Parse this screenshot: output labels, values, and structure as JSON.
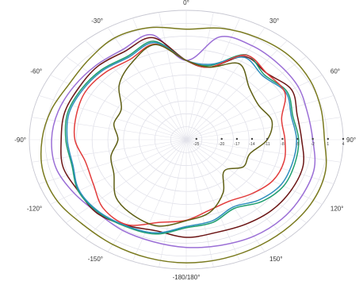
{
  "chart_data": {
    "type": "line",
    "subtype": "polar",
    "angle_ticks": [
      "0°",
      "30°",
      "60°",
      "90°",
      "120°",
      "150°",
      "-180/180°",
      "-150°",
      "-120°",
      "-90°",
      "-60°",
      "-30°"
    ],
    "radial_ticks": [
      "-25",
      "-20",
      "-17",
      "-14",
      "-11",
      "-8",
      "-5",
      "-2",
      "1",
      "4"
    ],
    "rlim": [
      -27,
      4
    ],
    "grid": true,
    "legend": "none",
    "series": [
      {
        "color": "#7a7a1e",
        "r": [
          -0.5,
          0.6,
          1.2,
          1.6,
          1.3,
          0.6,
          0.3,
          1.5,
          2.0,
          2.1,
          2.2,
          2.4,
          2.5,
          2.3,
          2.0,
          1.8,
          2.4,
          2.3,
          1.5,
          0.6,
          -0.3,
          0.2,
          1.2,
          0.8
        ]
      },
      {
        "color": "#9b6fd6",
        "r": [
          -8.0,
          -1.5,
          -1.0,
          -1.3,
          -1.5,
          -2.2,
          -2.0,
          -0.8,
          -0.5,
          -0.2,
          -0.3,
          -0.8,
          -1.2,
          -1.7,
          -1.9,
          -2.2,
          -1.4,
          -0.4,
          -0.4,
          -0.8,
          -1.4,
          -1.8,
          -2.0,
          -1.0
        ]
      },
      {
        "color": "#6b1414",
        "r": [
          -8.0,
          -9.0,
          -4.0,
          -4.5,
          -3.0,
          -4.3,
          -4.2,
          -3.1,
          -3.0,
          -3.1,
          -3.6,
          -4.0,
          -3.6,
          -4.4,
          -3.3,
          -2.1,
          -2.4,
          -1.8,
          -2.3,
          -2.1,
          -2.4,
          -2.2,
          -2.6,
          -1.7
        ]
      },
      {
        "color": "#1f9e6e",
        "r": [
          -8.0,
          -8.6,
          -3.5,
          -5.1,
          -4.0,
          -5.2,
          -4.8,
          -4.8,
          -4.8,
          -6.0,
          -8.0,
          -6.5,
          -5.9,
          -3.6,
          -3.0,
          -2.4,
          -2.4,
          -3.6,
          -3.2,
          -2.7,
          -3.0,
          -3.3,
          -3.9,
          -2.6
        ]
      },
      {
        "color": "#2f8fbe",
        "r": [
          -8.0,
          -8.3,
          -4.2,
          -5.5,
          -4.3,
          -5.5,
          -5.2,
          -5.3,
          -5.4,
          -6.6,
          -8.4,
          -6.9,
          -6.2,
          -3.9,
          -3.2,
          -2.6,
          -2.6,
          -3.8,
          -3.5,
          -3.0,
          -3.3,
          -3.6,
          -4.2,
          -2.9
        ]
      },
      {
        "color": "#e23c3c",
        "r": [
          -8.0,
          -9.0,
          -3.6,
          -4.5,
          -4.5,
          -7.5,
          -7.5,
          -7.0,
          -7.3,
          -8.7,
          -10.0,
          -9.5,
          -7.7,
          -6.5,
          -3.5,
          -3.8,
          -5.8,
          -6.4,
          -5.0,
          -4.5,
          -4.0,
          -4.3,
          -4.8,
          -3.3
        ]
      },
      {
        "color": "#5f5f14",
        "r": [
          -8.0,
          -9.0,
          -6.0,
          -9.4,
          -10.5,
          -9.5,
          -11.0,
          -14.0,
          -14.0,
          -16.4,
          -12.4,
          -9.0,
          -7.6,
          -5.6,
          -6.1,
          -7.4,
          -10.5,
          -11.6,
          -13.5,
          -12.2,
          -12.2,
          -8.3,
          -5.6,
          -3.4
        ]
      }
    ]
  }
}
